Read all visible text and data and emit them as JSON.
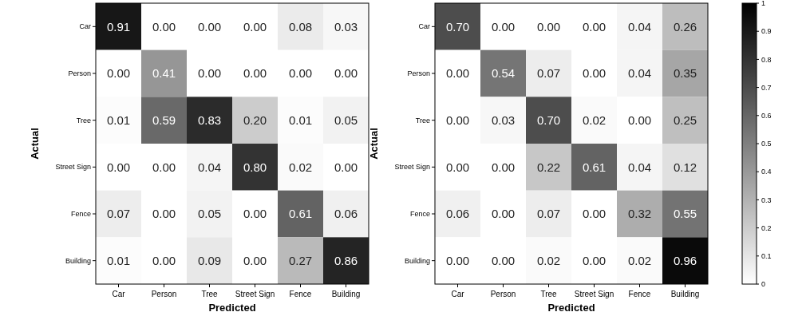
{
  "chart_data": [
    {
      "type": "heatmap",
      "xlabel": "Predicted",
      "ylabel": "Actual",
      "categories": [
        "Car",
        "Person",
        "Tree",
        "Street Sign",
        "Fence",
        "Building"
      ],
      "y_categories": [
        "Car",
        "Person",
        "Tree",
        "Street Sign",
        "Fence",
        "Building"
      ],
      "cells": [
        [
          0.91,
          0.0,
          0.0,
          0.0,
          0.08,
          0.03
        ],
        [
          0.0,
          0.41,
          0.0,
          0.0,
          0.0,
          0.0
        ],
        [
          0.01,
          0.59,
          0.83,
          0.2,
          0.01,
          0.05
        ],
        [
          0.0,
          0.0,
          0.04,
          0.8,
          0.02,
          0.0
        ],
        [
          0.07,
          0.0,
          0.05,
          0.0,
          0.61,
          0.06
        ],
        [
          0.01,
          0.0,
          0.09,
          0.0,
          0.27,
          0.86
        ]
      ],
      "cell_labels": [
        [
          "0.91",
          "0.00",
          "0.00",
          "0.00",
          "0.08",
          "0.03"
        ],
        [
          "0.00",
          "0.41",
          "0.00",
          "0.00",
          "0.00",
          "0.00"
        ],
        [
          "0.01",
          "0.59",
          "0.83",
          "0.20",
          "0.01",
          "0.05"
        ],
        [
          "0.00",
          "0.00",
          "0.04",
          "0.80",
          "0.02",
          "0.00"
        ],
        [
          "0.07",
          "0.00",
          "0.05",
          "0.00",
          "0.61",
          "0.06"
        ],
        [
          "0.01",
          "0.00",
          "0.09",
          "0.00",
          "0.27",
          "0.86"
        ]
      ]
    },
    {
      "type": "heatmap",
      "xlabel": "Predicted",
      "ylabel": "Actual",
      "categories": [
        "Car",
        "Person",
        "Tree",
        "Street Sign",
        "Fence",
        "Building"
      ],
      "y_categories": [
        "Car",
        "Person",
        "Tree",
        "Street Sign",
        "Fence",
        "Building"
      ],
      "cells": [
        [
          0.7,
          0.0,
          0.0,
          0.0,
          0.04,
          0.26
        ],
        [
          0.0,
          0.54,
          0.07,
          0.0,
          0.04,
          0.35
        ],
        [
          0.0,
          0.03,
          0.7,
          0.02,
          0.0,
          0.25
        ],
        [
          0.0,
          0.0,
          0.22,
          0.61,
          0.04,
          0.12
        ],
        [
          0.06,
          0.0,
          0.07,
          0.0,
          0.32,
          0.55
        ],
        [
          0.0,
          0.0,
          0.02,
          0.0,
          0.02,
          0.96
        ]
      ],
      "cell_labels": [
        [
          "0.70",
          "0.00",
          "0.00",
          "0.00",
          "0.04",
          "0.26"
        ],
        [
          "0.00",
          "0.54",
          "0.07",
          "0.00",
          "0.04",
          "0.35"
        ],
        [
          "0.00",
          "0.03",
          "0.70",
          "0.02",
          "0.00",
          "0.25"
        ],
        [
          "0.00",
          "0.00",
          "0.22",
          "0.61",
          "0.04",
          "0.12"
        ],
        [
          "0.06",
          "0.00",
          "0.07",
          "0.00",
          "0.32",
          "0.55"
        ],
        [
          "0.00",
          "0.00",
          "0.02",
          "0.00",
          "0.02",
          "0.96"
        ]
      ],
      "clim": [
        0,
        1
      ],
      "cticks": [
        0,
        0.1,
        0.2,
        0.3,
        0.4,
        0.5,
        0.6,
        0.7,
        0.8,
        0.9,
        1
      ]
    }
  ]
}
